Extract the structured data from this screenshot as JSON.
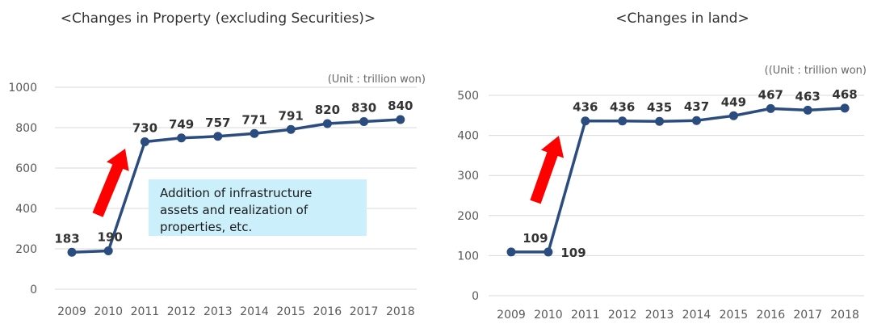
{
  "chart_data": [
    {
      "type": "line",
      "title": "<Changes in Property (excluding Securities)>",
      "unit": "(Unit : trillion won)",
      "x": [
        "2009",
        "2010",
        "2011",
        "2012",
        "2013",
        "2014",
        "2015",
        "2016",
        "2017",
        "2018"
      ],
      "series": [
        {
          "values": [
            183,
            190,
            730,
            749,
            757,
            771,
            791,
            820,
            830,
            840
          ]
        }
      ],
      "data_labels": [
        "183",
        "190",
        "730",
        "749",
        "757",
        "771",
        "791",
        "820",
        "830",
        "840"
      ],
      "yticks": [
        "0",
        "200",
        "400",
        "600",
        "800",
        "1000"
      ],
      "ylim": [
        0,
        1000
      ],
      "grid": true,
      "annotation": {
        "lines": [
          "Addition of infrastructure",
          "assets and realization of",
          "properties, etc."
        ]
      },
      "line_color": "#2b4c7e",
      "arrow_color": "#ff0000",
      "annotation_bg": "#ccf0fb"
    },
    {
      "type": "line",
      "title": "<Changes in land>",
      "unit": "((Unit : trillion won)",
      "x": [
        "2009",
        "2010",
        "2011",
        "2012",
        "2013",
        "2014",
        "2015",
        "2016",
        "2017",
        "2018"
      ],
      "series": [
        {
          "values": [
            109,
            109,
            436,
            436,
            435,
            437,
            449,
            467,
            463,
            468
          ]
        }
      ],
      "data_labels": [
        "",
        "109",
        "436",
        "436",
        "435",
        "437",
        "449",
        "467",
        "463",
        "468"
      ],
      "extra_label": "109",
      "yticks": [
        "0",
        "100",
        "200",
        "300",
        "400",
        "500"
      ],
      "ylim": [
        0,
        500
      ],
      "grid": true,
      "line_color": "#2b4c7e",
      "arrow_color": "#ff0000"
    }
  ]
}
